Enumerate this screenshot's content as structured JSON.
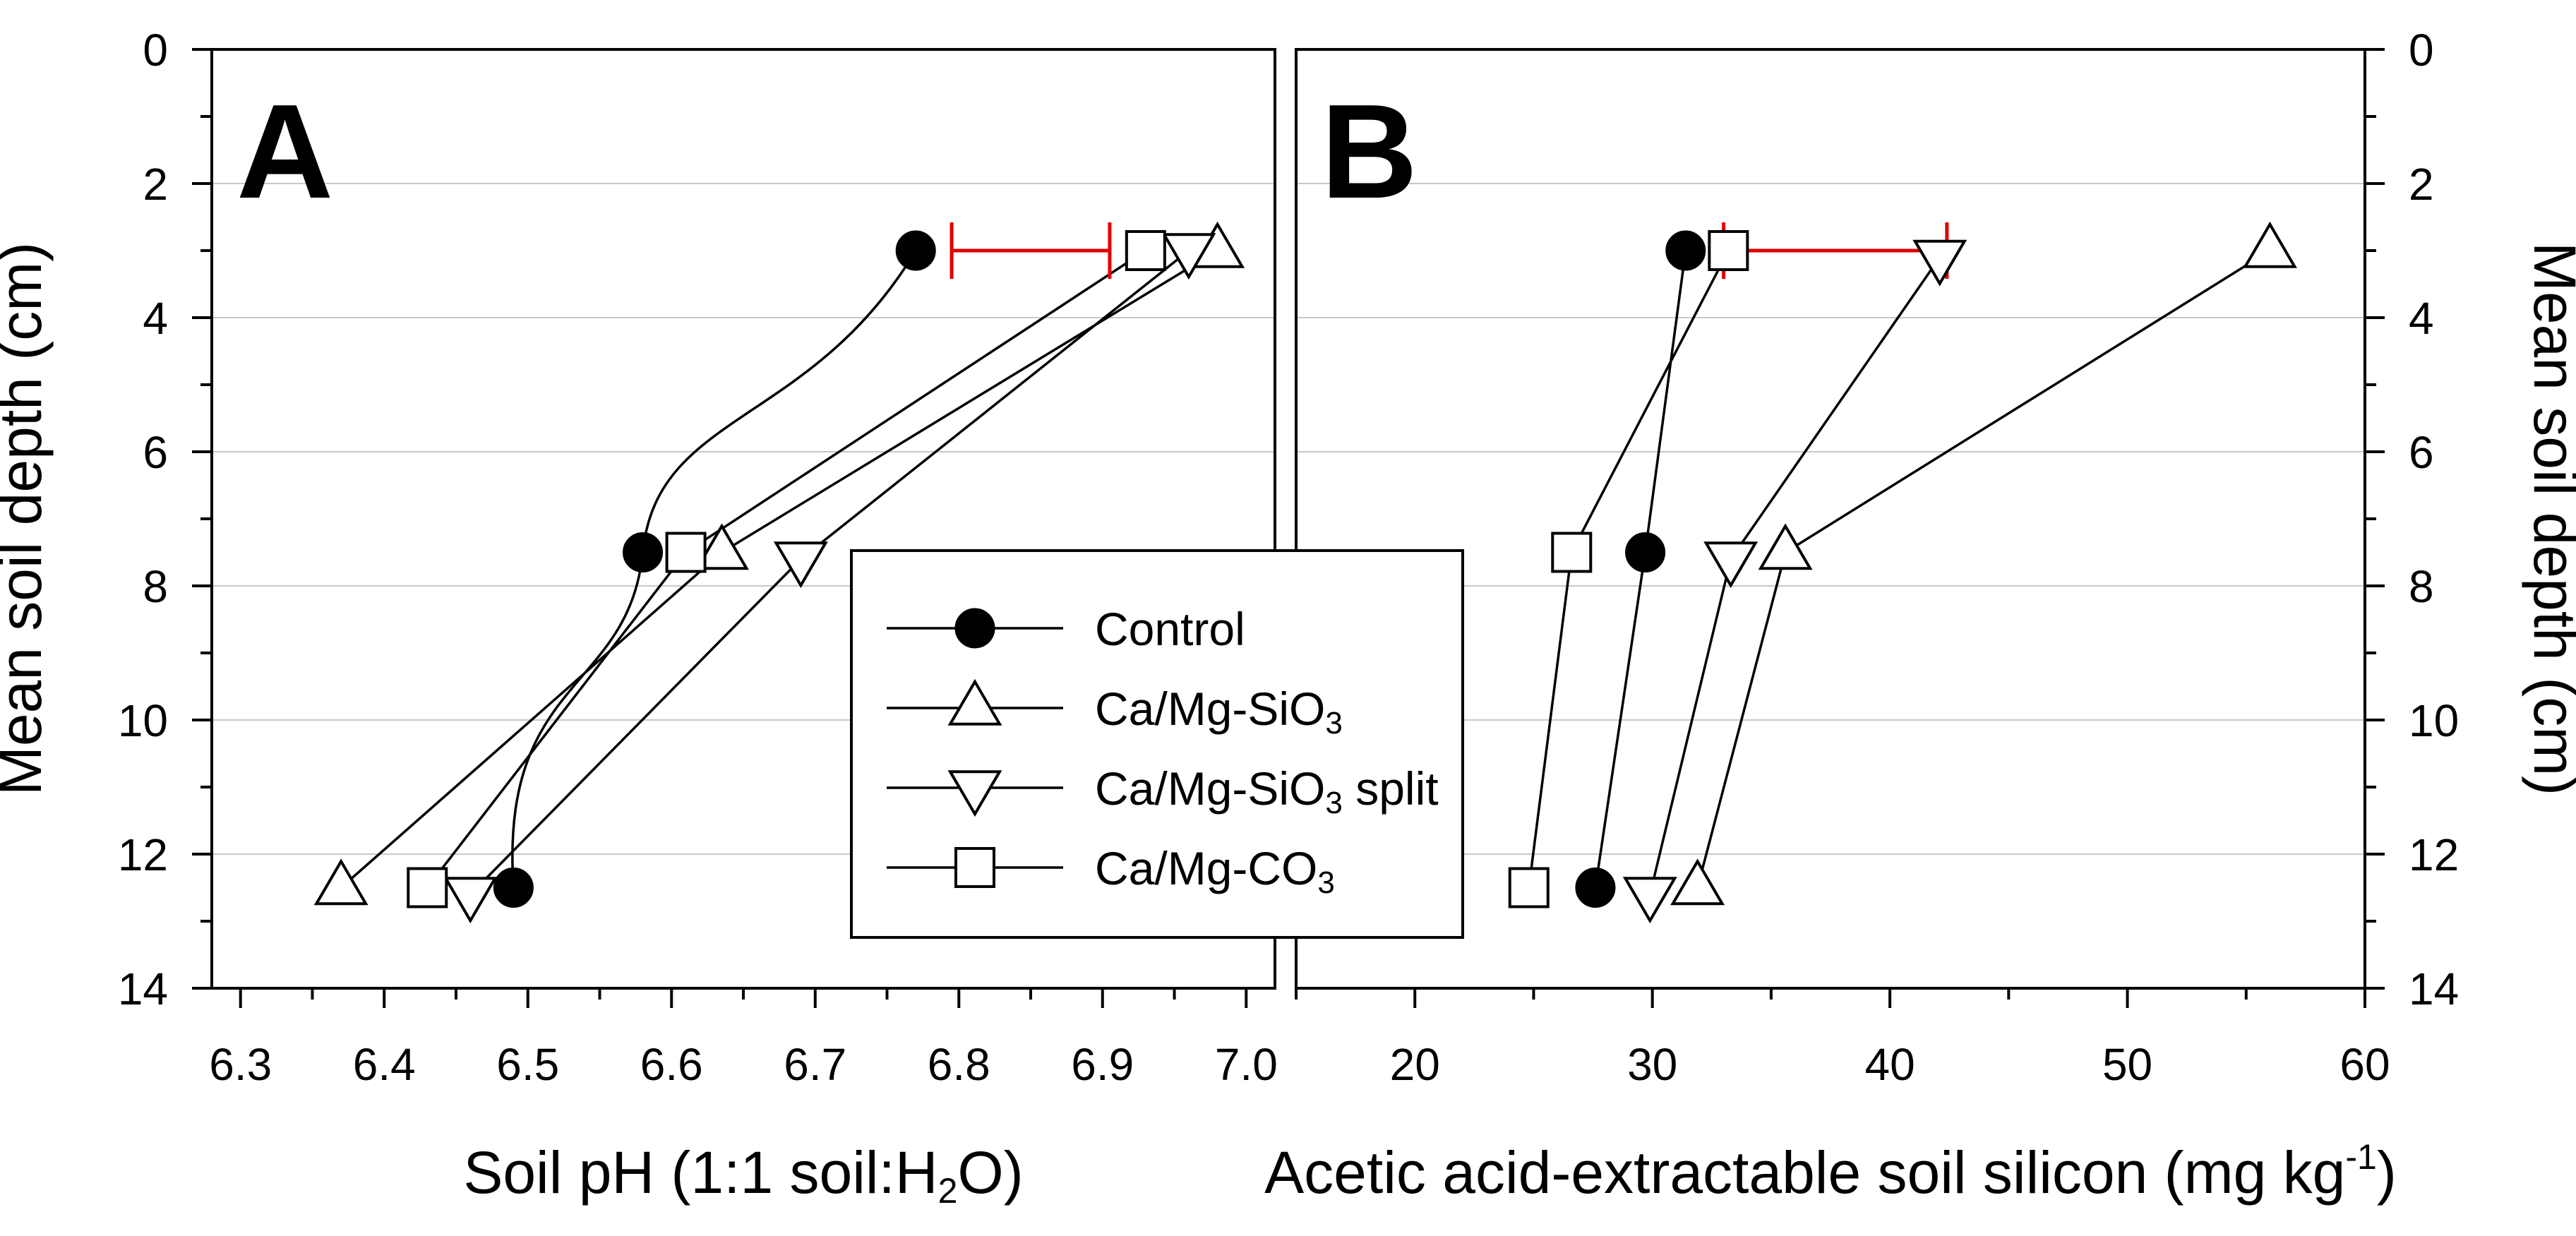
{
  "figure": {
    "legend": {
      "entries": [
        {
          "label": "Control",
          "marker": "filled-circle"
        },
        {
          "label": "Ca/Mg-SiO",
          "sub": "3",
          "suffix": "",
          "marker": "triangle-up"
        },
        {
          "label": "Ca/Mg-SiO",
          "sub": "3",
          "suffix": " split",
          "marker": "triangle-down"
        },
        {
          "label": "Ca/Mg-CO",
          "sub": "3",
          "suffix": "",
          "marker": "square"
        }
      ]
    },
    "error_bar_color": "#e00000"
  },
  "chart_data": [
    {
      "panel": "A",
      "type": "line",
      "xlabel": {
        "pre": "Soil pH (1:1 soil:H",
        "sub": "2",
        "post": "O)"
      },
      "ylabel": "Mean soil depth (cm)",
      "xlim": [
        6.28,
        7.02
      ],
      "ylim": [
        0,
        14
      ],
      "y_inverted": true,
      "x_ticks": [
        "6.3",
        "6.4",
        "6.5",
        "6.6",
        "6.7",
        "6.8",
        "6.9",
        "7.0"
      ],
      "x_tick_values": [
        6.3,
        6.4,
        6.5,
        6.6,
        6.7,
        6.8,
        6.9,
        7.0
      ],
      "y_ticks": [
        "0",
        "2",
        "4",
        "6",
        "8",
        "10",
        "12",
        "14"
      ],
      "y_tick_values": [
        0,
        2,
        4,
        6,
        8,
        10,
        12,
        14
      ],
      "grid": "horizontal",
      "series": [
        {
          "name": "Control",
          "marker": "filled-circle",
          "points": [
            [
              6.77,
              3.0
            ],
            [
              6.58,
              7.5
            ],
            [
              6.49,
              12.5
            ]
          ],
          "smooth": true
        },
        {
          "name": "Ca/Mg-SiO3",
          "marker": "triangle-up",
          "points": [
            [
              6.98,
              3.0
            ],
            [
              6.635,
              7.5
            ],
            [
              6.37,
              12.5
            ]
          ],
          "smooth": false
        },
        {
          "name": "Ca/Mg-SiO3 split",
          "marker": "triangle-down",
          "points": [
            [
              6.96,
              3.0
            ],
            [
              6.69,
              7.6
            ],
            [
              6.46,
              12.6
            ]
          ],
          "smooth": false
        },
        {
          "name": "Ca/Mg-CO3",
          "marker": "square",
          "points": [
            [
              6.93,
              3.0
            ],
            [
              6.61,
              7.5
            ],
            [
              6.43,
              12.5
            ]
          ],
          "smooth": false
        }
      ],
      "error_bar": {
        "y": 3.0,
        "x_from": 6.795,
        "x_to": 6.905
      }
    },
    {
      "panel": "B",
      "type": "line",
      "xlabel": {
        "pre": "Acetic acid-extractable soil silicon (mg kg",
        "sup": "-1",
        "post": ")"
      },
      "ylabel": "Mean soil depth (cm)",
      "xlim": [
        15,
        60
      ],
      "ylim": [
        0,
        14
      ],
      "y_inverted": true,
      "x_ticks": [
        "20",
        "30",
        "40",
        "50",
        "60"
      ],
      "x_tick_values": [
        20,
        30,
        40,
        50,
        60
      ],
      "y_ticks": [
        "0",
        "2",
        "4",
        "6",
        "8",
        "10",
        "12",
        "14"
      ],
      "y_tick_values": [
        0,
        2,
        4,
        6,
        8,
        10,
        12,
        14
      ],
      "grid": "horizontal",
      "series": [
        {
          "name": "Control",
          "marker": "filled-circle",
          "points": [
            [
              31.4,
              3.0
            ],
            [
              29.7,
              7.5
            ],
            [
              27.6,
              12.5
            ]
          ],
          "smooth": false
        },
        {
          "name": "Ca/Mg-SiO3",
          "marker": "triangle-up",
          "points": [
            [
              56.0,
              3.0
            ],
            [
              35.6,
              7.5
            ],
            [
              31.9,
              12.5
            ]
          ],
          "smooth": false
        },
        {
          "name": "Ca/Mg-SiO3 split",
          "marker": "triangle-down",
          "points": [
            [
              42.1,
              3.1
            ],
            [
              33.3,
              7.6
            ],
            [
              29.9,
              12.6
            ]
          ],
          "smooth": false
        },
        {
          "name": "Ca/Mg-CO3",
          "marker": "square",
          "points": [
            [
              33.2,
              3.0
            ],
            [
              26.6,
              7.5
            ],
            [
              24.8,
              12.5
            ]
          ],
          "smooth": false
        }
      ],
      "error_bar": {
        "y": 3.0,
        "x_from": 33.0,
        "x_to": 42.4
      }
    }
  ]
}
